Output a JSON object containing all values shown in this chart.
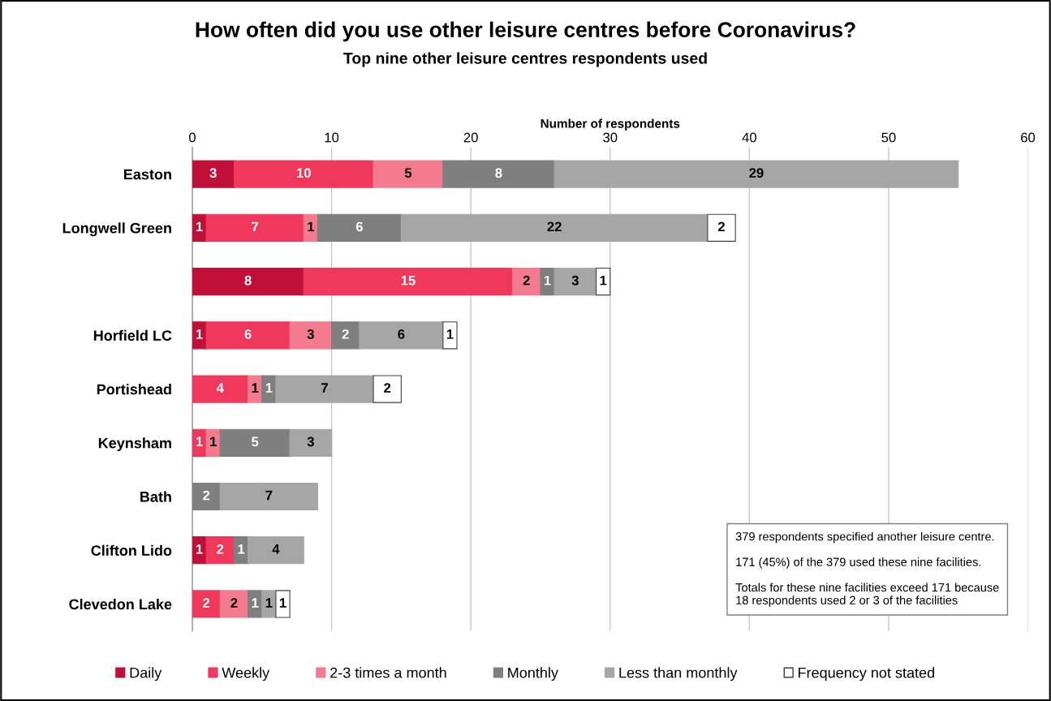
{
  "chart_data": {
    "type": "bar",
    "orientation": "horizontal",
    "stacked": true,
    "title": "How often did you use other leisure centres before Coronavirus?",
    "subtitle": "Top nine other leisure centres respondents used",
    "xlabel": "Number of respondents",
    "categories": [
      "Easton",
      "Longwell Green",
      null,
      "Horfield LC",
      "Portishead",
      "Keynsham",
      "Bath",
      "Clifton Lido",
      "Clevedon Lake"
    ],
    "series": [
      {
        "name": "Daily",
        "color": "#c0103a",
        "values": [
          3,
          1,
          8,
          1,
          null,
          null,
          null,
          1,
          null
        ]
      },
      {
        "name": "Weekly",
        "color": "#f0385c",
        "values": [
          10,
          7,
          15,
          6,
          4,
          1,
          null,
          2,
          2
        ]
      },
      {
        "name": "2-3 times a month",
        "color": "#f47a8e",
        "values": [
          5,
          1,
          2,
          3,
          1,
          1,
          null,
          null,
          2
        ]
      },
      {
        "name": "Monthly",
        "color": "#7f7f7f",
        "values": [
          8,
          6,
          1,
          2,
          1,
          5,
          2,
          1,
          1
        ]
      },
      {
        "name": "Less than monthly",
        "color": "#a6a6a6",
        "values": [
          29,
          22,
          3,
          6,
          7,
          3,
          7,
          4,
          1
        ]
      },
      {
        "name": "Frequency not stated",
        "color": "#ffffff",
        "values": [
          null,
          2,
          1,
          1,
          2,
          null,
          null,
          null,
          1
        ]
      }
    ],
    "xlim": [
      0,
      60
    ],
    "xticks": [
      0,
      10,
      20,
      30,
      40,
      50,
      60
    ],
    "grid": "x",
    "legend": "bottom",
    "data_labels": true,
    "annotations": [
      "379 respondents specified another leisure centre.\n\n171 (45%) of the 379 used these nine facilities.\n\nTotals for these nine facilities exceed 171 because\n18 respondents used 2 or 3 of the facilities"
    ]
  }
}
